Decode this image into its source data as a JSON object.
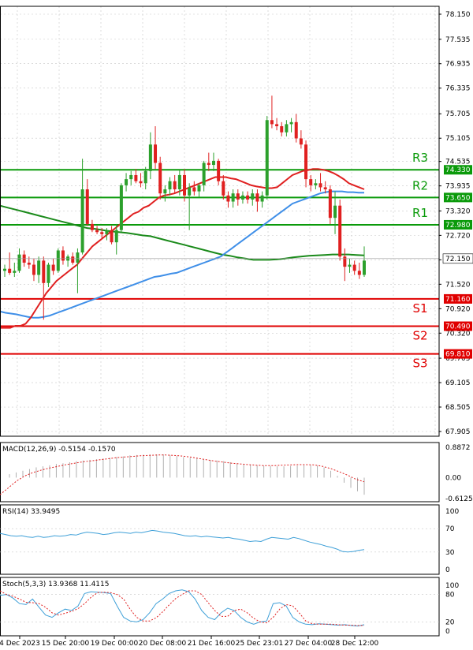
{
  "colors": {
    "background": "#ffffff",
    "grid": "#c8c8c8",
    "candle_up": "#2ca02c",
    "candle_down": "#e02020",
    "level_support": "#e00000",
    "level_resistance": "#0a9a0a",
    "ma_fast": "#e02020",
    "ma_mid": "#3f8fe8",
    "ma_slow": "#1a8a1a",
    "indicator_line": "#3fa0d8",
    "signal_dotted": "#e02020",
    "macd_hist": "#b0b0b0",
    "price_box": "#ffffff"
  },
  "chart_data": {
    "type": "candlestick",
    "x_tick_labels": [
      "4 Dec 2023",
      "15 Dec 20:00",
      "19 Dec 00:00",
      "20 Dec 08:00",
      "21 Dec 16:00",
      "25 Dec 23:01",
      "27 Dec 04:00",
      "28 Dec 12:00"
    ],
    "y_tick_labels": [
      "78.150",
      "77.535",
      "76.935",
      "76.335",
      "75.705",
      "75.105",
      "74.535",
      "73.935",
      "73.320",
      "72.720",
      "72.120",
      "71.520",
      "70.920",
      "70.320",
      "69.705",
      "69.105",
      "68.505",
      "67.905"
    ],
    "ylim": [
      67.905,
      78.15
    ],
    "current_price": "72.150",
    "levels": [
      {
        "name": "R3",
        "value": 74.33,
        "label": "74.330",
        "kind": "resistance"
      },
      {
        "name": "R2",
        "value": 73.65,
        "label": "73.650",
        "kind": "resistance"
      },
      {
        "name": "R1",
        "value": 72.98,
        "label": "72.980",
        "kind": "resistance"
      },
      {
        "name": "S1",
        "value": 71.16,
        "label": "71.160",
        "kind": "support"
      },
      {
        "name": "S2",
        "value": 70.49,
        "label": "70.490",
        "kind": "support"
      },
      {
        "name": "S3",
        "value": 69.81,
        "label": "69.810",
        "kind": "support"
      }
    ],
    "candles": [
      {
        "o": 71.85,
        "h": 72.0,
        "l": 71.7,
        "c": 71.9
      },
      {
        "o": 71.9,
        "h": 72.3,
        "l": 71.75,
        "c": 71.8
      },
      {
        "o": 71.8,
        "h": 72.05,
        "l": 71.7,
        "c": 71.85
      },
      {
        "o": 71.85,
        "h": 72.4,
        "l": 71.8,
        "c": 72.25
      },
      {
        "o": 72.25,
        "h": 72.35,
        "l": 71.95,
        "c": 72.05
      },
      {
        "o": 72.05,
        "h": 72.2,
        "l": 71.9,
        "c": 72.0
      },
      {
        "o": 72.0,
        "h": 72.15,
        "l": 71.6,
        "c": 71.75
      },
      {
        "o": 71.75,
        "h": 72.2,
        "l": 71.55,
        "c": 72.1
      },
      {
        "o": 72.1,
        "h": 72.2,
        "l": 70.65,
        "c": 71.55
      },
      {
        "o": 71.55,
        "h": 72.05,
        "l": 71.45,
        "c": 72.0
      },
      {
        "o": 72.0,
        "h": 72.15,
        "l": 71.75,
        "c": 71.85
      },
      {
        "o": 71.85,
        "h": 72.4,
        "l": 71.8,
        "c": 72.35
      },
      {
        "o": 72.35,
        "h": 72.45,
        "l": 72.0,
        "c": 72.1
      },
      {
        "o": 72.1,
        "h": 72.25,
        "l": 71.95,
        "c": 72.2
      },
      {
        "o": 72.2,
        "h": 72.3,
        "l": 72.0,
        "c": 72.05
      },
      {
        "o": 72.05,
        "h": 72.4,
        "l": 71.3,
        "c": 72.3
      },
      {
        "o": 72.3,
        "h": 74.6,
        "l": 72.25,
        "c": 73.85
      },
      {
        "o": 73.85,
        "h": 74.1,
        "l": 72.95,
        "c": 73.0
      },
      {
        "o": 73.0,
        "h": 73.1,
        "l": 72.8,
        "c": 72.85
      },
      {
        "o": 72.85,
        "h": 72.95,
        "l": 72.75,
        "c": 72.8
      },
      {
        "o": 72.8,
        "h": 72.9,
        "l": 72.65,
        "c": 72.75
      },
      {
        "o": 72.75,
        "h": 72.9,
        "l": 72.6,
        "c": 72.85
      },
      {
        "o": 72.85,
        "h": 72.95,
        "l": 72.5,
        "c": 72.55
      },
      {
        "o": 72.55,
        "h": 73.0,
        "l": 72.25,
        "c": 72.85
      },
      {
        "o": 72.85,
        "h": 74.0,
        "l": 72.8,
        "c": 73.95
      },
      {
        "o": 73.95,
        "h": 74.25,
        "l": 73.8,
        "c": 74.1
      },
      {
        "o": 74.1,
        "h": 74.3,
        "l": 73.95,
        "c": 74.2
      },
      {
        "o": 74.2,
        "h": 74.35,
        "l": 74.0,
        "c": 74.05
      },
      {
        "o": 74.05,
        "h": 74.25,
        "l": 73.9,
        "c": 74.0
      },
      {
        "o": 74.0,
        "h": 74.4,
        "l": 73.85,
        "c": 74.3
      },
      {
        "o": 74.3,
        "h": 75.25,
        "l": 74.1,
        "c": 74.95
      },
      {
        "o": 74.95,
        "h": 75.4,
        "l": 74.35,
        "c": 74.5
      },
      {
        "o": 74.5,
        "h": 74.65,
        "l": 73.6,
        "c": 73.75
      },
      {
        "o": 73.75,
        "h": 73.95,
        "l": 73.55,
        "c": 73.85
      },
      {
        "o": 73.85,
        "h": 74.15,
        "l": 73.7,
        "c": 74.05
      },
      {
        "o": 74.05,
        "h": 74.2,
        "l": 73.75,
        "c": 73.85
      },
      {
        "o": 73.85,
        "h": 74.35,
        "l": 73.7,
        "c": 74.2
      },
      {
        "o": 74.2,
        "h": 74.35,
        "l": 73.55,
        "c": 73.7
      },
      {
        "o": 73.7,
        "h": 74.0,
        "l": 72.85,
        "c": 73.9
      },
      {
        "o": 73.9,
        "h": 74.05,
        "l": 73.7,
        "c": 73.8
      },
      {
        "o": 73.8,
        "h": 74.0,
        "l": 73.65,
        "c": 73.95
      },
      {
        "o": 73.95,
        "h": 74.55,
        "l": 73.8,
        "c": 74.5
      },
      {
        "o": 74.5,
        "h": 74.75,
        "l": 74.3,
        "c": 74.45
      },
      {
        "o": 74.45,
        "h": 74.75,
        "l": 74.3,
        "c": 74.55
      },
      {
        "o": 74.55,
        "h": 74.6,
        "l": 73.95,
        "c": 74.05
      },
      {
        "o": 74.05,
        "h": 74.2,
        "l": 73.6,
        "c": 73.7
      },
      {
        "o": 73.7,
        "h": 73.8,
        "l": 73.4,
        "c": 73.55
      },
      {
        "o": 73.55,
        "h": 73.85,
        "l": 73.4,
        "c": 73.75
      },
      {
        "o": 73.75,
        "h": 73.85,
        "l": 73.45,
        "c": 73.6
      },
      {
        "o": 73.6,
        "h": 73.8,
        "l": 73.5,
        "c": 73.7
      },
      {
        "o": 73.7,
        "h": 73.8,
        "l": 73.5,
        "c": 73.6
      },
      {
        "o": 73.6,
        "h": 73.85,
        "l": 73.45,
        "c": 73.75
      },
      {
        "o": 73.75,
        "h": 73.85,
        "l": 73.3,
        "c": 73.55
      },
      {
        "o": 73.55,
        "h": 73.8,
        "l": 73.4,
        "c": 73.7
      },
      {
        "o": 73.7,
        "h": 75.65,
        "l": 73.6,
        "c": 75.55
      },
      {
        "o": 75.55,
        "h": 76.15,
        "l": 75.35,
        "c": 75.45
      },
      {
        "o": 75.45,
        "h": 75.6,
        "l": 75.3,
        "c": 75.4
      },
      {
        "o": 75.4,
        "h": 75.5,
        "l": 75.15,
        "c": 75.25
      },
      {
        "o": 75.25,
        "h": 75.55,
        "l": 75.15,
        "c": 75.45
      },
      {
        "o": 75.45,
        "h": 75.6,
        "l": 75.25,
        "c": 75.5
      },
      {
        "o": 75.5,
        "h": 75.7,
        "l": 75.0,
        "c": 75.1
      },
      {
        "o": 75.1,
        "h": 75.3,
        "l": 74.85,
        "c": 74.95
      },
      {
        "o": 74.95,
        "h": 75.05,
        "l": 73.9,
        "c": 74.1
      },
      {
        "o": 74.1,
        "h": 74.2,
        "l": 73.8,
        "c": 73.95
      },
      {
        "o": 73.95,
        "h": 74.1,
        "l": 73.85,
        "c": 74.0
      },
      {
        "o": 74.0,
        "h": 74.25,
        "l": 73.8,
        "c": 73.9
      },
      {
        "o": 73.9,
        "h": 74.05,
        "l": 73.75,
        "c": 73.85
      },
      {
        "o": 73.85,
        "h": 73.95,
        "l": 73.0,
        "c": 73.15
      },
      {
        "o": 73.15,
        "h": 73.8,
        "l": 72.75,
        "c": 73.45
      },
      {
        "o": 73.45,
        "h": 73.6,
        "l": 72.1,
        "c": 72.2
      },
      {
        "o": 72.2,
        "h": 72.4,
        "l": 71.6,
        "c": 71.95
      },
      {
        "o": 71.95,
        "h": 72.15,
        "l": 71.8,
        "c": 72.0
      },
      {
        "o": 72.0,
        "h": 72.1,
        "l": 71.75,
        "c": 71.85
      },
      {
        "o": 71.85,
        "h": 72.05,
        "l": 71.65,
        "c": 71.75
      },
      {
        "o": 71.75,
        "h": 72.45,
        "l": 71.7,
        "c": 72.1
      }
    ],
    "ma_fast": [
      70.45,
      70.45,
      70.45,
      70.5,
      70.5,
      70.55,
      70.7,
      70.9,
      71.1,
      71.3,
      71.45,
      71.6,
      71.7,
      71.8,
      71.9,
      72.0,
      72.15,
      72.3,
      72.45,
      72.55,
      72.65,
      72.75,
      72.85,
      72.95,
      73.05,
      73.15,
      73.25,
      73.3,
      73.4,
      73.45,
      73.55,
      73.65,
      73.7,
      73.72,
      73.75,
      73.8,
      73.85,
      73.9,
      73.95,
      74.0,
      74.05,
      74.1,
      74.15,
      74.15,
      74.15,
      74.12,
      74.1,
      74.05,
      74.0,
      73.95,
      73.92,
      73.9,
      73.88,
      73.88,
      73.9,
      74.0,
      74.1,
      74.2,
      74.25,
      74.3,
      74.32,
      74.35,
      74.35,
      74.33,
      74.3,
      74.25,
      74.18,
      74.1,
      74.0,
      73.95,
      73.9,
      73.85
    ],
    "ma_mid": [
      70.85,
      70.82,
      70.8,
      70.78,
      70.75,
      70.72,
      70.7,
      70.7,
      70.72,
      70.75,
      70.8,
      70.85,
      70.9,
      70.95,
      71.0,
      71.05,
      71.1,
      71.15,
      71.2,
      71.25,
      71.3,
      71.35,
      71.4,
      71.45,
      71.5,
      71.55,
      71.6,
      71.65,
      71.7,
      71.72,
      71.75,
      71.78,
      71.8,
      71.85,
      71.9,
      71.95,
      72.0,
      72.05,
      72.1,
      72.15,
      72.2,
      72.3,
      72.4,
      72.5,
      72.6,
      72.7,
      72.8,
      72.9,
      73.0,
      73.1,
      73.2,
      73.3,
      73.4,
      73.5,
      73.55,
      73.6,
      73.65,
      73.7,
      73.75,
      73.78,
      73.8,
      73.8,
      73.8,
      73.78,
      73.78,
      73.77,
      73.77
    ],
    "ma_slow": [
      73.45,
      73.4,
      73.35,
      73.3,
      73.25,
      73.2,
      73.15,
      73.1,
      73.05,
      73.0,
      72.95,
      72.9,
      72.88,
      72.85,
      72.82,
      72.8,
      72.78,
      72.75,
      72.72,
      72.7,
      72.65,
      72.6,
      72.55,
      72.5,
      72.45,
      72.4,
      72.35,
      72.3,
      72.25,
      72.22,
      72.18,
      72.15,
      72.12,
      72.12,
      72.12,
      72.13,
      72.15,
      72.18,
      72.2,
      72.22,
      72.23,
      72.24,
      72.25,
      72.25,
      72.25,
      72.24,
      72.23
    ],
    "macd": {
      "title": "MACD(12,26,9) -0.5154 -0.1570",
      "y_tick_labels": [
        "0.8872",
        "0.00",
        "-0.6125"
      ],
      "ylim": [
        -0.6125,
        0.8872
      ],
      "histogram": [
        0.1,
        0.15,
        0.2,
        0.25,
        0.3,
        0.33,
        0.36,
        0.4,
        0.42,
        0.45,
        0.48,
        0.5,
        0.52,
        0.54,
        0.56,
        0.58,
        0.6,
        0.62,
        0.65,
        0.66,
        0.67,
        0.68,
        0.68,
        0.68,
        0.66,
        0.63,
        0.6,
        0.58,
        0.56,
        0.54,
        0.52,
        0.5,
        0.48,
        0.45,
        0.42,
        0.4,
        0.38,
        0.36,
        0.35,
        0.34,
        0.33,
        0.33,
        0.34,
        0.35,
        0.36,
        0.36,
        0.35,
        0.3,
        0.2,
        0.05,
        -0.15,
        -0.3,
        -0.4,
        -0.5
      ],
      "signal": [
        -0.5,
        -0.3,
        -0.1,
        0.05,
        0.15,
        0.22,
        0.28,
        0.33,
        0.38,
        0.42,
        0.46,
        0.49,
        0.52,
        0.55,
        0.58,
        0.6,
        0.62,
        0.64,
        0.65,
        0.66,
        0.66,
        0.65,
        0.63,
        0.6,
        0.56,
        0.52,
        0.48,
        0.45,
        0.42,
        0.4,
        0.38,
        0.36,
        0.35,
        0.35,
        0.36,
        0.37,
        0.38,
        0.38,
        0.37,
        0.33,
        0.26,
        0.17,
        0.07,
        -0.05,
        -0.12
      ]
    },
    "rsi": {
      "title": "RSI(14) 33.9495",
      "y_tick_labels": [
        "100",
        "70",
        "30",
        "0"
      ],
      "ylim": [
        0,
        100
      ],
      "values": [
        62,
        60,
        58,
        57,
        58,
        56,
        55,
        57,
        55,
        56,
        58,
        57,
        58,
        60,
        59,
        62,
        64,
        63,
        62,
        60,
        61,
        63,
        64,
        63,
        62,
        64,
        63,
        65,
        67,
        66,
        64,
        63,
        62,
        60,
        58,
        57,
        58,
        56,
        57,
        56,
        55,
        54,
        55,
        53,
        52,
        50,
        48,
        49,
        48,
        52,
        55,
        54,
        53,
        52,
        55,
        53,
        50,
        47,
        45,
        43,
        40,
        38,
        35,
        31,
        30,
        31,
        33,
        34
      ]
    },
    "stoch": {
      "title": "Stoch(5,3,3) 13.9368 11.4115",
      "y_tick_labels": [
        "100",
        "80",
        "20",
        "0"
      ],
      "ylim": [
        0,
        100
      ],
      "k": [
        78,
        80,
        72,
        60,
        58,
        70,
        52,
        35,
        30,
        40,
        48,
        45,
        55,
        82,
        86,
        85,
        84,
        82,
        55,
        30,
        22,
        20,
        25,
        40,
        60,
        70,
        82,
        88,
        90,
        86,
        70,
        45,
        30,
        25,
        40,
        50,
        45,
        30,
        20,
        15,
        20,
        22,
        60,
        62,
        55,
        30,
        20,
        15,
        14,
        16,
        15,
        14,
        13,
        14,
        12,
        11,
        14
      ],
      "d": [
        88,
        80,
        76,
        70,
        63,
        62,
        60,
        52,
        40,
        35,
        39,
        43,
        49,
        60,
        74,
        84,
        85,
        84,
        80,
        70,
        48,
        30,
        22,
        22,
        29,
        42,
        57,
        71,
        80,
        88,
        88,
        80,
        62,
        45,
        32,
        32,
        45,
        48,
        40,
        28,
        20,
        18,
        30,
        48,
        58,
        55,
        40,
        22,
        16,
        15,
        15,
        15,
        14,
        13,
        13,
        12,
        12
      ]
    }
  }
}
